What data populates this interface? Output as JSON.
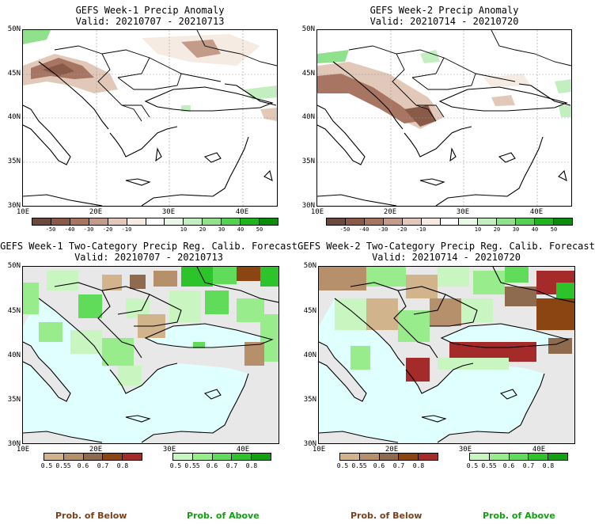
{
  "panels": {
    "p1": {
      "title_line1": "GEFS Week-1 Precip Anomaly",
      "title_line2": "Valid: 20210707 - 20210713"
    },
    "p2": {
      "title_line1": "GEFS Week-2 Precip Anomaly",
      "title_line2": "Valid: 20210714 - 20210720"
    },
    "p3": {
      "title_line1": "GEFS Week-1 Two-Category Precip Reg. Calib. Forecast",
      "title_line2": "Valid: 20210707 - 20210713"
    },
    "p4": {
      "title_line1": "GEFS Week-2 Two-Category Precip Reg. Calib. Forecast",
      "title_line2": "Valid: 20210714 - 20210720"
    }
  },
  "axes": {
    "lat_labels": [
      "50N",
      "45N",
      "40N",
      "35N",
      "30N"
    ],
    "lon_labels": [
      "10E",
      "20E",
      "30E",
      "40E"
    ]
  },
  "anomaly_colorbar": {
    "labels": [
      "-50",
      "-40",
      "-30",
      "-20",
      "-10",
      "10",
      "20",
      "30",
      "40",
      "50"
    ],
    "colors": [
      "#6b4a3c",
      "#8a5a48",
      "#a87562",
      "#c49b88",
      "#e1c8b9",
      "#f5ebe3",
      "#ffffff",
      "#e8f7e6",
      "#c3efc0",
      "#8fe28b",
      "#55d152",
      "#20b51f",
      "#0a8d0a"
    ]
  },
  "prob_below_colorbar": {
    "labels": [
      "0.5",
      "0.55",
      "0.6",
      "0.7",
      "0.8"
    ],
    "colors": [
      "#d2b48c",
      "#b5906a",
      "#8e6a4e",
      "#8b4513",
      "#a52a2a"
    ],
    "caption": "Prob. of Below"
  },
  "prob_above_colorbar": {
    "labels": [
      "0.5",
      "0.55",
      "0.6",
      "0.7",
      "0.8"
    ],
    "colors": [
      "#c8f5c0",
      "#98ec8c",
      "#60dc5a",
      "#2cc42a",
      "#10a010"
    ],
    "caption": "Prob. of Above"
  },
  "colors": {
    "sea_light": "#e0ffff",
    "land_gray": "#e8e8e8",
    "caption_below": "#7b3f1a",
    "caption_above": "#10a010"
  }
}
